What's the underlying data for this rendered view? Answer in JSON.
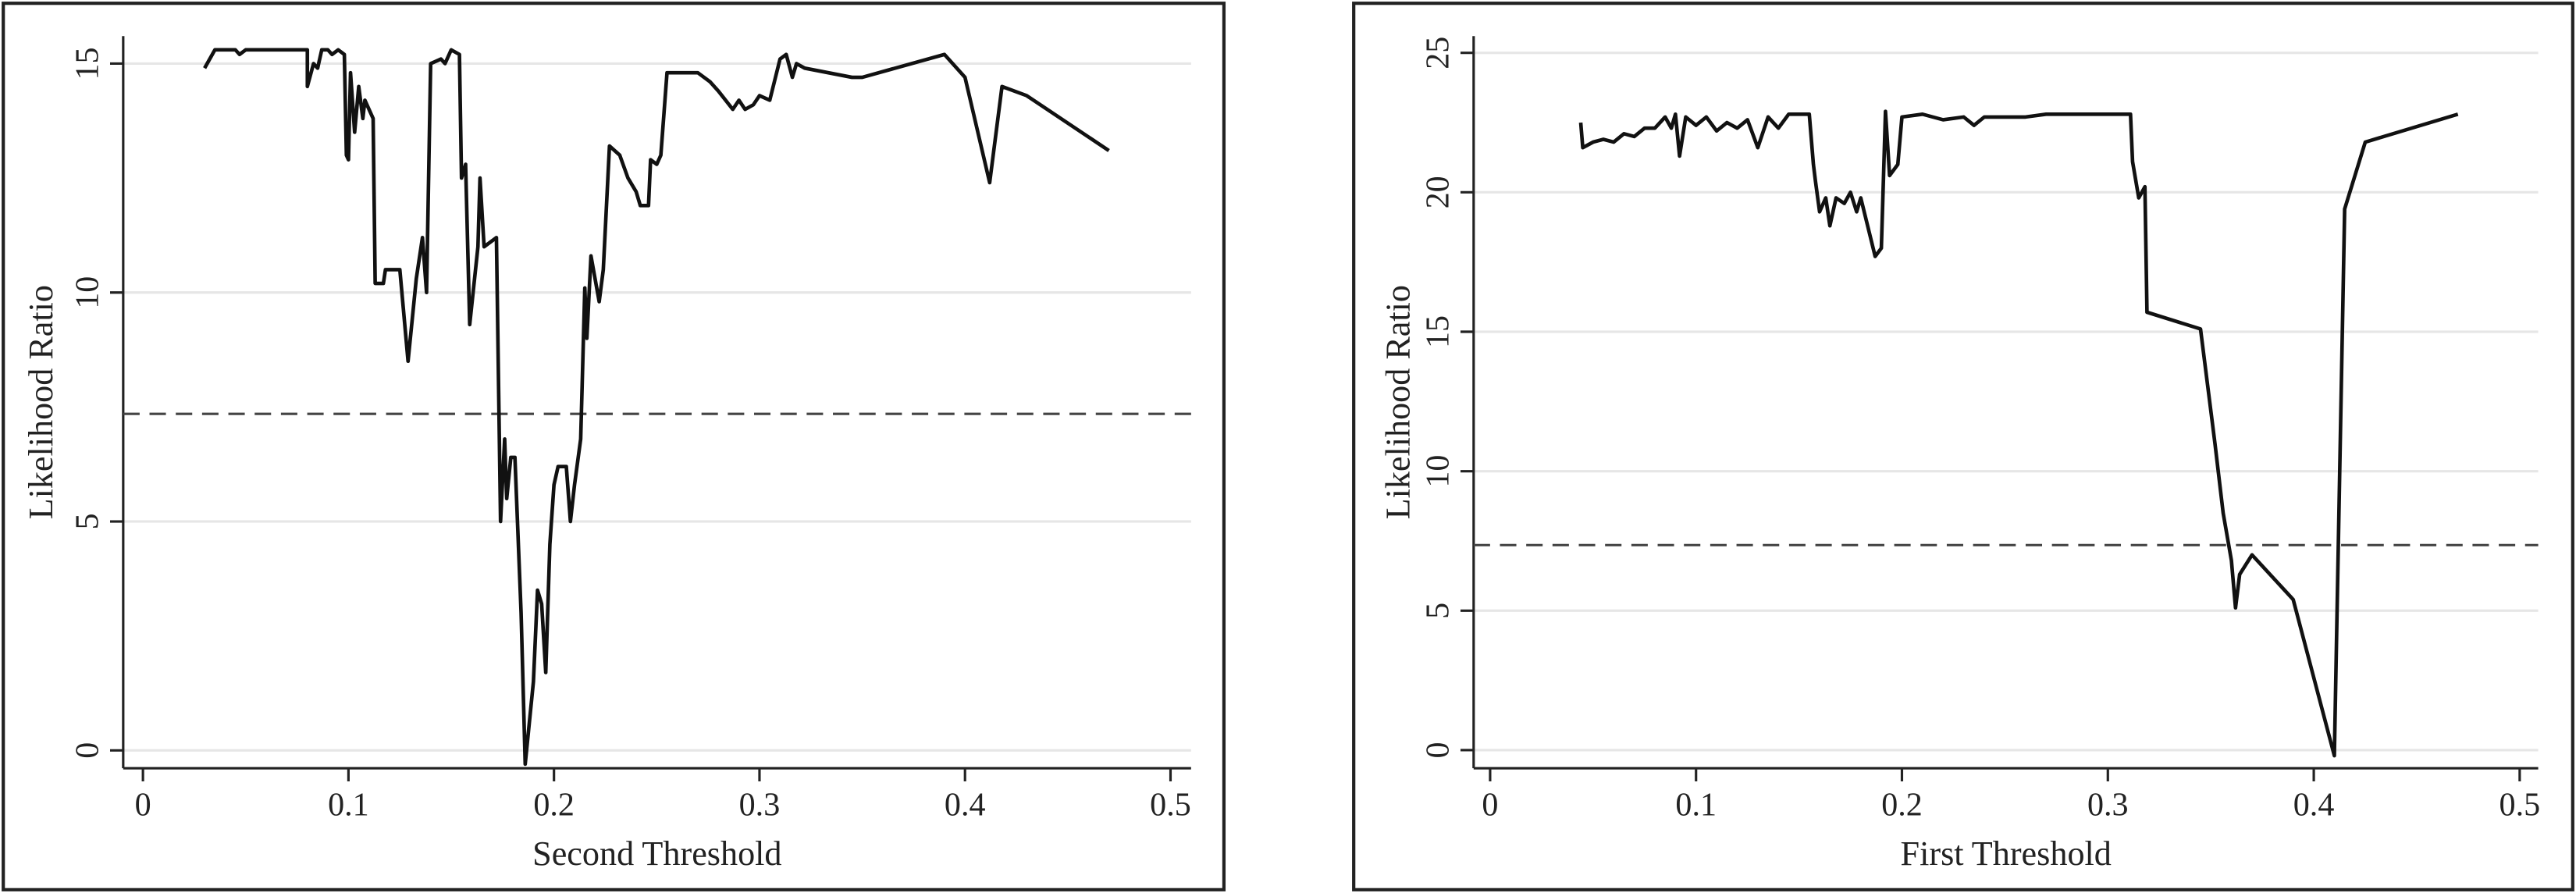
{
  "chart_data": [
    {
      "type": "line",
      "xlabel": "Second Threshold",
      "ylabel": "Likelihood Ratio",
      "xlim": [
        -0.0096,
        0.51
      ],
      "ylim": [
        -0.39,
        15.6
      ],
      "xticks": [
        0,
        0.1,
        0.2,
        0.3,
        0.4,
        0.5
      ],
      "yticks": [
        0,
        5,
        10,
        15
      ],
      "grid": true,
      "reference_line": 7.35,
      "x": [
        0.03,
        0.035,
        0.045,
        0.047,
        0.05,
        0.08,
        0.08,
        0.083,
        0.085,
        0.087,
        0.09,
        0.092,
        0.095,
        0.098,
        0.099,
        0.1,
        0.101,
        0.103,
        0.105,
        0.107,
        0.108,
        0.11,
        0.112,
        0.113,
        0.117,
        0.118,
        0.125,
        0.129,
        0.133,
        0.136,
        0.138,
        0.14,
        0.145,
        0.147,
        0.15,
        0.154,
        0.155,
        0.157,
        0.159,
        0.163,
        0.164,
        0.166,
        0.172,
        0.174,
        0.176,
        0.177,
        0.179,
        0.181,
        0.184,
        0.186,
        0.19,
        0.192,
        0.194,
        0.196,
        0.198,
        0.2,
        0.202,
        0.206,
        0.208,
        0.21,
        0.213,
        0.215,
        0.216,
        0.218,
        0.222,
        0.224,
        0.227,
        0.232,
        0.236,
        0.24,
        0.242,
        0.246,
        0.247,
        0.25,
        0.252,
        0.255,
        0.27,
        0.276,
        0.28,
        0.287,
        0.29,
        0.293,
        0.297,
        0.3,
        0.305,
        0.31,
        0.313,
        0.316,
        0.318,
        0.322,
        0.345,
        0.35,
        0.39,
        0.4,
        0.412,
        0.418,
        0.43,
        0.47
      ],
      "series": [
        {
          "color": "#111111",
          "values": [
            14.9,
            15.3,
            15.3,
            15.2,
            15.3,
            15.3,
            14.5,
            15.0,
            14.9,
            15.3,
            15.3,
            15.2,
            15.3,
            15.2,
            13.0,
            12.9,
            14.8,
            13.5,
            14.5,
            13.8,
            14.2,
            14.0,
            13.8,
            10.2,
            10.2,
            10.5,
            10.5,
            8.5,
            10.3,
            11.2,
            10.0,
            15.0,
            15.1,
            15.0,
            15.3,
            15.2,
            12.5,
            12.8,
            9.3,
            11.0,
            12.5,
            11.0,
            11.2,
            5.0,
            6.8,
            5.5,
            6.4,
            6.4,
            3.0,
            -0.3,
            1.5,
            3.5,
            3.2,
            1.7,
            4.5,
            5.8,
            6.2,
            6.2,
            5.0,
            5.8,
            6.8,
            10.1,
            9.0,
            10.8,
            9.8,
            10.5,
            13.2,
            13.0,
            12.5,
            12.2,
            11.9,
            11.9,
            12.9,
            12.8,
            13.0,
            14.8,
            14.8,
            14.6,
            14.4,
            14.0,
            14.2,
            14.0,
            14.1,
            14.3,
            14.2,
            15.1,
            15.2,
            14.7,
            15.0,
            14.9,
            14.7,
            14.7,
            15.2,
            14.7,
            12.4,
            14.5,
            14.3,
            13.1
          ]
        }
      ]
    },
    {
      "type": "line",
      "xlabel": "First Threshold",
      "ylabel": "Likelihood Ratio",
      "xlim": [
        -0.008,
        0.509
      ],
      "ylim": [
        -0.65,
        25.6
      ],
      "xticks": [
        0,
        0.1,
        0.2,
        0.3,
        0.4,
        0.5
      ],
      "yticks": [
        0,
        5,
        10,
        15,
        20,
        25
      ],
      "grid": true,
      "reference_line": 7.35,
      "x": [
        0.044,
        0.045,
        0.05,
        0.055,
        0.06,
        0.065,
        0.07,
        0.075,
        0.08,
        0.085,
        0.088,
        0.09,
        0.092,
        0.095,
        0.1,
        0.105,
        0.11,
        0.115,
        0.12,
        0.125,
        0.13,
        0.135,
        0.14,
        0.145,
        0.155,
        0.157,
        0.158,
        0.16,
        0.163,
        0.165,
        0.168,
        0.172,
        0.175,
        0.178,
        0.18,
        0.183,
        0.187,
        0.19,
        0.192,
        0.194,
        0.198,
        0.2,
        0.21,
        0.22,
        0.23,
        0.235,
        0.24,
        0.26,
        0.27,
        0.311,
        0.312,
        0.315,
        0.318,
        0.319,
        0.345,
        0.352,
        0.356,
        0.36,
        0.362,
        0.364,
        0.37,
        0.39,
        0.4,
        0.41,
        0.415,
        0.425,
        0.47
      ],
      "series": [
        {
          "color": "#111111",
          "values": [
            22.5,
            21.6,
            21.8,
            21.9,
            21.8,
            22.1,
            22.0,
            22.3,
            22.3,
            22.7,
            22.3,
            22.8,
            21.3,
            22.7,
            22.4,
            22.7,
            22.2,
            22.5,
            22.3,
            22.6,
            21.6,
            22.7,
            22.3,
            22.8,
            22.8,
            21.0,
            20.4,
            19.3,
            19.8,
            18.8,
            19.8,
            19.6,
            20.0,
            19.3,
            19.8,
            18.9,
            17.7,
            18.0,
            22.9,
            20.6,
            21.0,
            22.7,
            22.8,
            22.6,
            22.7,
            22.4,
            22.7,
            22.7,
            22.8,
            22.8,
            21.1,
            19.8,
            20.2,
            15.7,
            15.1,
            11.0,
            8.5,
            6.8,
            5.1,
            6.3,
            7.0,
            5.4,
            2.6,
            -0.2,
            19.4,
            21.8,
            22.8
          ]
        }
      ]
    }
  ]
}
